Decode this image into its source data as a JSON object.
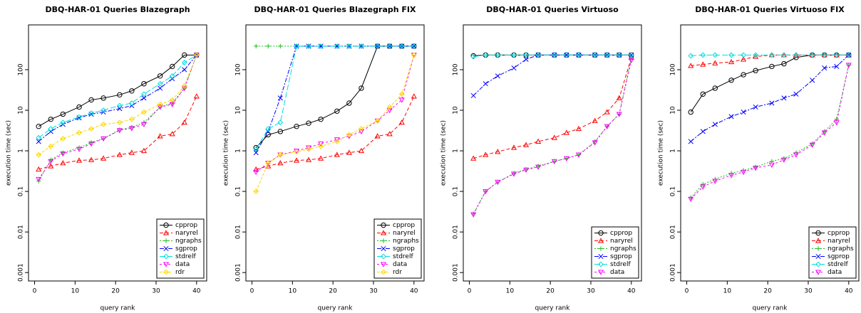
{
  "chart_data": [
    {
      "type": "line",
      "title": "DBQ-HAR-01 Queries Blazegraph",
      "x_label": "query rank",
      "y_label": "execution time (sec)",
      "log_y": true,
      "legend": "lower right",
      "xlim": [
        -1.5,
        42.5
      ],
      "ylim": [
        0.00062,
        1270
      ],
      "xticks": [
        0,
        10,
        20,
        30,
        40
      ],
      "yticks": [
        0.001,
        0.01,
        0.1,
        1,
        10,
        100
      ],
      "x": [
        1,
        4,
        7,
        11,
        14,
        17,
        21,
        24,
        27,
        31,
        34,
        37,
        40
      ],
      "series": [
        {
          "name": "cpprop",
          "color": "#000000",
          "values": [
            4,
            6,
            8,
            12,
            18,
            20,
            24,
            30,
            45,
            70,
            120,
            230,
            230
          ]
        },
        {
          "name": "naryrel",
          "color": "#ff0000",
          "values": [
            0.35,
            0.42,
            0.5,
            0.58,
            0.6,
            0.65,
            0.8,
            0.9,
            1.0,
            2.3,
            2.6,
            5,
            22
          ]
        },
        {
          "name": "ngraphs",
          "color": "#22bb22",
          "values": [
            0.18,
            0.6,
            0.9,
            1.2,
            1.6,
            2,
            3.3,
            3.8,
            5,
            12,
            15,
            35,
            230
          ]
        },
        {
          "name": "sgprop",
          "color": "#0000ff",
          "values": [
            1.7,
            3,
            4.5,
            6.5,
            8,
            9,
            11,
            13,
            20,
            35,
            60,
            100,
            230
          ]
        },
        {
          "name": "stdrelf",
          "color": "#00dddd",
          "values": [
            2.1,
            3.5,
            5,
            6.8,
            8.5,
            10,
            13,
            15,
            25,
            45,
            70,
            150,
            230
          ]
        },
        {
          "name": "data",
          "color": "#ff00ff",
          "values": [
            0.2,
            0.55,
            0.85,
            1.1,
            1.5,
            2,
            3.2,
            3.6,
            4.5,
            12,
            14,
            35,
            230
          ]
        },
        {
          "name": "rdr",
          "color": "#ffd700",
          "values": [
            0.8,
            1.3,
            2,
            2.8,
            3.5,
            4.5,
            5,
            6,
            9,
            14,
            18,
            40,
            230
          ]
        }
      ]
    },
    {
      "type": "line",
      "title": "DBQ-HAR-01 Queries Blazegraph FIX",
      "x_label": "query rank",
      "y_label": "execution time (sec)",
      "log_y": true,
      "legend": "lower right",
      "xlim": [
        -1.5,
        42.5
      ],
      "ylim": [
        0.00062,
        1270
      ],
      "xticks": [
        0,
        10,
        20,
        30,
        40
      ],
      "yticks": [
        0.001,
        0.01,
        0.1,
        1,
        10,
        100
      ],
      "x": [
        1,
        4,
        7,
        11,
        14,
        17,
        21,
        24,
        27,
        31,
        34,
        37,
        40
      ],
      "series": [
        {
          "name": "cpprop",
          "color": "#000000",
          "values": [
            1.2,
            2.5,
            3,
            4,
            4.8,
            6,
            9.5,
            15,
            35,
            380,
            380,
            380,
            380
          ]
        },
        {
          "name": "naryrel",
          "color": "#ff0000",
          "values": [
            0.35,
            0.42,
            0.5,
            0.58,
            0.6,
            0.65,
            0.8,
            0.9,
            1.0,
            2.3,
            2.6,
            5,
            22
          ]
        },
        {
          "name": "ngraphs",
          "color": "#22bb22",
          "values": [
            380,
            380,
            380,
            380,
            380,
            380,
            380,
            380,
            380,
            380,
            380,
            380,
            380
          ]
        },
        {
          "name": "sgprop",
          "color": "#0000ff",
          "values": [
            0.9,
            3,
            20,
            380,
            380,
            380,
            380,
            380,
            380,
            380,
            380,
            380,
            380
          ]
        },
        {
          "name": "stdrelf",
          "color": "#00dddd",
          "values": [
            1.1,
            3.5,
            5,
            380,
            380,
            380,
            380,
            380,
            380,
            380,
            380,
            380,
            380
          ]
        },
        {
          "name": "data",
          "color": "#ff00ff",
          "values": [
            0.3,
            0.5,
            0.8,
            1.0,
            1.2,
            1.5,
            1.9,
            2.3,
            3.0,
            5.5,
            10,
            18,
            230
          ]
        },
        {
          "name": "rdr",
          "color": "#ffd700",
          "values": [
            0.1,
            0.5,
            0.8,
            0.95,
            1.1,
            1.3,
            1.7,
            2.5,
            3.5,
            5.5,
            12,
            25,
            230
          ]
        }
      ]
    },
    {
      "type": "line",
      "title": "DBQ-HAR-01 Queries Virtuoso",
      "x_label": "query rank",
      "y_label": "execution time (sec)",
      "log_y": true,
      "legend": "lower right",
      "xlim": [
        -1.5,
        42.5
      ],
      "ylim": [
        0.00062,
        1270
      ],
      "xticks": [
        0,
        10,
        20,
        30,
        40
      ],
      "yticks": [
        0.001,
        0.01,
        0.1,
        1,
        10,
        100
      ],
      "x": [
        1,
        4,
        7,
        11,
        14,
        17,
        21,
        24,
        27,
        31,
        34,
        37,
        40
      ],
      "series": [
        {
          "name": "cpprop",
          "color": "#000000",
          "values": [
            220,
            230,
            230,
            230,
            230,
            230,
            230,
            230,
            230,
            230,
            230,
            230,
            230
          ]
        },
        {
          "name": "naryrel",
          "color": "#ff0000",
          "values": [
            0.65,
            0.8,
            0.95,
            1.2,
            1.4,
            1.7,
            2.1,
            2.8,
            3.5,
            5.5,
            9,
            20,
            200
          ]
        },
        {
          "name": "ngraphs",
          "color": "#22bb22",
          "values": [
            0.028,
            0.1,
            0.17,
            0.28,
            0.35,
            0.42,
            0.55,
            0.65,
            0.8,
            1.7,
            4,
            8,
            200
          ]
        },
        {
          "name": "sgprop",
          "color": "#0000ff",
          "values": [
            23,
            45,
            70,
            110,
            180,
            230,
            230,
            230,
            230,
            230,
            230,
            230,
            230
          ]
        },
        {
          "name": "stdrelf",
          "color": "#00dddd",
          "values": [
            210,
            230,
            230,
            230,
            230,
            230,
            230,
            230,
            230,
            230,
            230,
            230,
            230
          ]
        },
        {
          "name": "data",
          "color": "#ff00ff",
          "values": [
            0.027,
            0.1,
            0.17,
            0.27,
            0.34,
            0.4,
            0.55,
            0.65,
            0.8,
            1.6,
            4,
            8,
            170
          ]
        }
      ]
    },
    {
      "type": "line",
      "title": "DBQ-HAR-01 Queries Virtuoso FIX",
      "x_label": "query rank",
      "y_label": "execution time (sec)",
      "log_y": true,
      "legend": "lower right",
      "xlim": [
        -1.5,
        42.5
      ],
      "ylim": [
        0.00062,
        1270
      ],
      "xticks": [
        0,
        10,
        20,
        30,
        40
      ],
      "yticks": [
        0.001,
        0.01,
        0.1,
        1,
        10,
        100
      ],
      "x": [
        1,
        4,
        7,
        11,
        14,
        17,
        21,
        24,
        27,
        31,
        34,
        37,
        40
      ],
      "series": [
        {
          "name": "cpprop",
          "color": "#000000",
          "values": [
            9,
            25,
            35,
            55,
            75,
            95,
            120,
            140,
            200,
            230,
            230,
            230,
            230
          ]
        },
        {
          "name": "naryrel",
          "color": "#ff0000",
          "values": [
            125,
            135,
            145,
            155,
            180,
            210,
            230,
            230,
            230,
            230,
            230,
            230,
            230
          ]
        },
        {
          "name": "ngraphs",
          "color": "#22bb22",
          "values": [
            0.07,
            0.15,
            0.2,
            0.28,
            0.33,
            0.4,
            0.55,
            0.65,
            0.9,
            1.5,
            3,
            6,
            130
          ]
        },
        {
          "name": "sgprop",
          "color": "#0000ff",
          "values": [
            1.7,
            3,
            4.5,
            7,
            9,
            12,
            15,
            20,
            25,
            55,
            110,
            120,
            230
          ]
        },
        {
          "name": "stdrelf",
          "color": "#00dddd",
          "values": [
            220,
            230,
            230,
            230,
            230,
            230,
            230,
            230,
            230,
            230,
            230,
            230,
            230
          ]
        },
        {
          "name": "data",
          "color": "#ff00ff",
          "values": [
            0.065,
            0.13,
            0.18,
            0.25,
            0.3,
            0.38,
            0.45,
            0.6,
            0.8,
            1.4,
            2.8,
            5,
            130
          ]
        }
      ]
    }
  ]
}
